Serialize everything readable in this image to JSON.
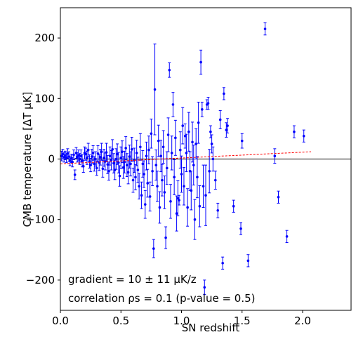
{
  "chart_data": {
    "type": "scatter",
    "title": "",
    "xlabel": "SN redshift",
    "ylabel": "CMB temperature [ΔT μK]",
    "xlim": [
      0.0,
      2.4
    ],
    "ylim": [
      -250,
      250
    ],
    "xticks": [
      0.0,
      0.5,
      1.0,
      1.5,
      2.0
    ],
    "xtick_labels": [
      "0.0",
      "0.5",
      "1.0",
      "1.5",
      "2.0"
    ],
    "yticks": [
      -200,
      -100,
      0,
      100,
      200
    ],
    "ytick_labels": [
      "−200",
      "−100",
      "0",
      "100",
      "200"
    ],
    "grid": false,
    "colors": {
      "points": "#0000ff",
      "fit": "#ff0000",
      "zero_line": "#000000"
    },
    "annotations": [
      "gradient = 10 ± 11 μK/z",
      "correlation ρs = 0.1 (p-value = 0.5)"
    ],
    "zero_line": {
      "y": 0
    },
    "fit_line": {
      "x": [
        0.0,
        2.07
      ],
      "y": [
        -8,
        12
      ]
    },
    "points": [
      {
        "x": 0.01,
        "y": 5,
        "err": 8
      },
      {
        "x": 0.02,
        "y": 8,
        "err": 8
      },
      {
        "x": 0.03,
        "y": 3,
        "err": 8
      },
      {
        "x": 0.04,
        "y": 6,
        "err": 7
      },
      {
        "x": 0.05,
        "y": 2,
        "err": 8
      },
      {
        "x": 0.06,
        "y": 9,
        "err": 8
      },
      {
        "x": 0.07,
        "y": 4,
        "err": 8
      },
      {
        "x": 0.08,
        "y": -3,
        "err": 8
      },
      {
        "x": 0.09,
        "y": 1,
        "err": 7
      },
      {
        "x": 0.1,
        "y": -5,
        "err": 8
      },
      {
        "x": 0.11,
        "y": 7,
        "err": 8
      },
      {
        "x": 0.12,
        "y": -26,
        "err": 8
      },
      {
        "x": 0.13,
        "y": 10,
        "err": 9
      },
      {
        "x": 0.14,
        "y": 3,
        "err": 8
      },
      {
        "x": 0.15,
        "y": 6,
        "err": 9
      },
      {
        "x": 0.16,
        "y": 0,
        "err": 9
      },
      {
        "x": 0.17,
        "y": 5,
        "err": 10
      },
      {
        "x": 0.18,
        "y": -3,
        "err": 10
      },
      {
        "x": 0.19,
        "y": -12,
        "err": 10
      },
      {
        "x": 0.2,
        "y": 10,
        "err": 10
      },
      {
        "x": 0.21,
        "y": 8,
        "err": 10
      },
      {
        "x": 0.22,
        "y": 2,
        "err": 11
      },
      {
        "x": 0.23,
        "y": 15,
        "err": 11
      },
      {
        "x": 0.24,
        "y": -4,
        "err": 11
      },
      {
        "x": 0.25,
        "y": -10,
        "err": 11
      },
      {
        "x": 0.26,
        "y": 4,
        "err": 12
      },
      {
        "x": 0.27,
        "y": 10,
        "err": 12
      },
      {
        "x": 0.28,
        "y": -8,
        "err": 12
      },
      {
        "x": 0.29,
        "y": 0,
        "err": 12
      },
      {
        "x": 0.3,
        "y": -15,
        "err": 12
      },
      {
        "x": 0.31,
        "y": 9,
        "err": 13
      },
      {
        "x": 0.32,
        "y": -6,
        "err": 13
      },
      {
        "x": 0.33,
        "y": 3,
        "err": 13
      },
      {
        "x": 0.34,
        "y": 12,
        "err": 14
      },
      {
        "x": 0.35,
        "y": -16,
        "err": 14
      },
      {
        "x": 0.36,
        "y": 2,
        "err": 14
      },
      {
        "x": 0.37,
        "y": -4,
        "err": 14
      },
      {
        "x": 0.38,
        "y": 11,
        "err": 15
      },
      {
        "x": 0.39,
        "y": -9,
        "err": 15
      },
      {
        "x": 0.4,
        "y": -20,
        "err": 15
      },
      {
        "x": 0.41,
        "y": 5,
        "err": 15
      },
      {
        "x": 0.42,
        "y": -2,
        "err": 16
      },
      {
        "x": 0.43,
        "y": 16,
        "err": 16
      },
      {
        "x": 0.44,
        "y": -7,
        "err": 16
      },
      {
        "x": 0.45,
        "y": -18,
        "err": 16
      },
      {
        "x": 0.46,
        "y": 0,
        "err": 17
      },
      {
        "x": 0.47,
        "y": 8,
        "err": 17
      },
      {
        "x": 0.48,
        "y": -6,
        "err": 17
      },
      {
        "x": 0.49,
        "y": -28,
        "err": 17
      },
      {
        "x": 0.5,
        "y": 2,
        "err": 18
      },
      {
        "x": 0.51,
        "y": 12,
        "err": 18
      },
      {
        "x": 0.52,
        "y": -14,
        "err": 18
      },
      {
        "x": 0.53,
        "y": -5,
        "err": 18
      },
      {
        "x": 0.54,
        "y": 18,
        "err": 19
      },
      {
        "x": 0.55,
        "y": -10,
        "err": 19
      },
      {
        "x": 0.56,
        "y": -22,
        "err": 19
      },
      {
        "x": 0.57,
        "y": 4,
        "err": 19
      },
      {
        "x": 0.58,
        "y": -8,
        "err": 20
      },
      {
        "x": 0.59,
        "y": 16,
        "err": 20
      },
      {
        "x": 0.6,
        "y": -35,
        "err": 20
      },
      {
        "x": 0.61,
        "y": -2,
        "err": 20
      },
      {
        "x": 0.62,
        "y": -30,
        "err": 21
      },
      {
        "x": 0.63,
        "y": 10,
        "err": 21
      },
      {
        "x": 0.64,
        "y": -18,
        "err": 21
      },
      {
        "x": 0.65,
        "y": -45,
        "err": 21
      },
      {
        "x": 0.66,
        "y": 20,
        "err": 22
      },
      {
        "x": 0.67,
        "y": -60,
        "err": 22
      },
      {
        "x": 0.68,
        "y": -8,
        "err": 22
      },
      {
        "x": 0.69,
        "y": -25,
        "err": 22
      },
      {
        "x": 0.7,
        "y": -75,
        "err": 23
      },
      {
        "x": 0.71,
        "y": 5,
        "err": 23
      },
      {
        "x": 0.72,
        "y": -40,
        "err": 23
      },
      {
        "x": 0.73,
        "y": 15,
        "err": 23
      },
      {
        "x": 0.74,
        "y": -62,
        "err": 24
      },
      {
        "x": 0.75,
        "y": 42,
        "err": 24
      },
      {
        "x": 0.76,
        "y": -20,
        "err": 24
      },
      {
        "x": 0.77,
        "y": -148,
        "err": 15
      },
      {
        "x": 0.78,
        "y": 115,
        "err": 75
      },
      {
        "x": 0.79,
        "y": -10,
        "err": 25
      },
      {
        "x": 0.8,
        "y": -45,
        "err": 25
      },
      {
        "x": 0.81,
        "y": 30,
        "err": 26
      },
      {
        "x": 0.82,
        "y": -80,
        "err": 26
      },
      {
        "x": 0.83,
        "y": 5,
        "err": 26
      },
      {
        "x": 0.84,
        "y": -35,
        "err": 26
      },
      {
        "x": 0.85,
        "y": 20,
        "err": 27
      },
      {
        "x": 0.86,
        "y": -55,
        "err": 27
      },
      {
        "x": 0.87,
        "y": -130,
        "err": 18
      },
      {
        "x": 0.88,
        "y": -15,
        "err": 27
      },
      {
        "x": 0.89,
        "y": 40,
        "err": 28
      },
      {
        "x": 0.9,
        "y": 147,
        "err": 12
      },
      {
        "x": 0.91,
        "y": -70,
        "err": 28
      },
      {
        "x": 0.92,
        "y": 10,
        "err": 28
      },
      {
        "x": 0.93,
        "y": 90,
        "err": 20
      },
      {
        "x": 0.94,
        "y": -30,
        "err": 29
      },
      {
        "x": 0.95,
        "y": 35,
        "err": 29
      },
      {
        "x": 0.96,
        "y": -90,
        "err": 29
      },
      {
        "x": 0.97,
        "y": -65,
        "err": 29
      },
      {
        "x": 0.98,
        "y": -68,
        "err": 8
      },
      {
        "x": 0.99,
        "y": 15,
        "err": 30
      },
      {
        "x": 1.0,
        "y": -25,
        "err": 30
      },
      {
        "x": 1.01,
        "y": 55,
        "err": 30
      },
      {
        "x": 1.02,
        "y": -45,
        "err": 31
      },
      {
        "x": 1.03,
        "y": 38,
        "err": 20
      },
      {
        "x": 1.04,
        "y": 10,
        "err": 31
      },
      {
        "x": 1.05,
        "y": -80,
        "err": 31
      },
      {
        "x": 1.06,
        "y": 45,
        "err": 32
      },
      {
        "x": 1.07,
        "y": -20,
        "err": 32
      },
      {
        "x": 1.08,
        "y": -52,
        "err": 32
      },
      {
        "x": 1.09,
        "y": 28,
        "err": 33
      },
      {
        "x": 1.1,
        "y": -10,
        "err": 33
      },
      {
        "x": 1.11,
        "y": -100,
        "err": 33
      },
      {
        "x": 1.12,
        "y": 25,
        "err": 25
      },
      {
        "x": 1.13,
        "y": -30,
        "err": 34
      },
      {
        "x": 1.14,
        "y": 60,
        "err": 34
      },
      {
        "x": 1.15,
        "y": -78,
        "err": 34
      },
      {
        "x": 1.16,
        "y": 160,
        "err": 20
      },
      {
        "x": 1.17,
        "y": 82,
        "err": 12
      },
      {
        "x": 1.18,
        "y": -45,
        "err": 35
      },
      {
        "x": 1.19,
        "y": -212,
        "err": 12
      },
      {
        "x": 1.2,
        "y": -60,
        "err": 50
      },
      {
        "x": 1.21,
        "y": 90,
        "err": 8
      },
      {
        "x": 1.22,
        "y": 92,
        "err": 10
      },
      {
        "x": 1.23,
        "y": -20,
        "err": 36
      },
      {
        "x": 1.24,
        "y": 45,
        "err": 10
      },
      {
        "x": 1.25,
        "y": 25,
        "err": 15
      },
      {
        "x": 1.26,
        "y": 0,
        "err": 20
      },
      {
        "x": 1.28,
        "y": -35,
        "err": 15
      },
      {
        "x": 1.3,
        "y": -85,
        "err": 12
      },
      {
        "x": 1.32,
        "y": 65,
        "err": 15
      },
      {
        "x": 1.34,
        "y": -172,
        "err": 10
      },
      {
        "x": 1.35,
        "y": 108,
        "err": 10
      },
      {
        "x": 1.37,
        "y": 48,
        "err": 12
      },
      {
        "x": 1.38,
        "y": 55,
        "err": 12
      },
      {
        "x": 1.43,
        "y": -78,
        "err": 10
      },
      {
        "x": 1.49,
        "y": -115,
        "err": 10
      },
      {
        "x": 1.5,
        "y": 30,
        "err": 12
      },
      {
        "x": 1.55,
        "y": -168,
        "err": 10
      },
      {
        "x": 1.69,
        "y": 215,
        "err": 10
      },
      {
        "x": 1.77,
        "y": 5,
        "err": 12
      },
      {
        "x": 1.8,
        "y": -63,
        "err": 10
      },
      {
        "x": 1.87,
        "y": -128,
        "err": 10
      },
      {
        "x": 1.93,
        "y": 45,
        "err": 10
      },
      {
        "x": 2.01,
        "y": 38,
        "err": 10
      }
    ]
  }
}
